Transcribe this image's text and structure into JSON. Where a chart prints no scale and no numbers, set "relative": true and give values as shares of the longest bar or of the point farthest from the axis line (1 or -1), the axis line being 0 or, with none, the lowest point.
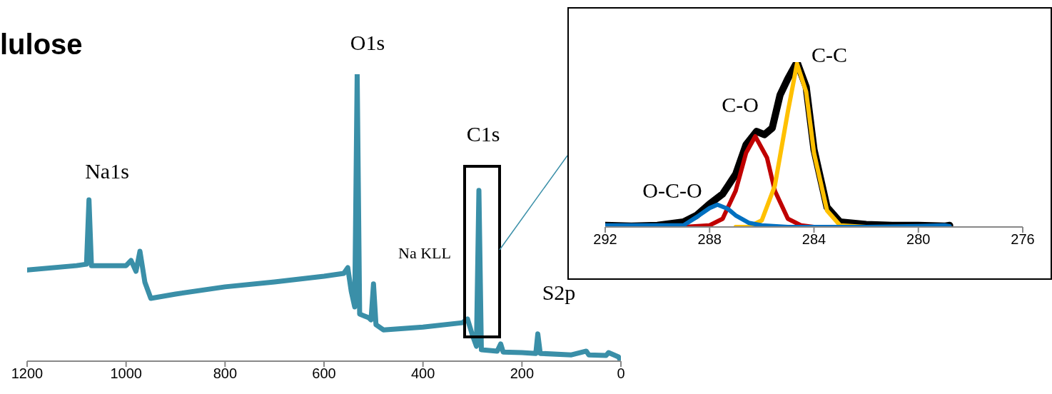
{
  "chart_data": [
    {
      "type": "line",
      "title": "lulose",
      "relative": true,
      "xlim": [
        1200,
        0
      ],
      "xticks": [
        1200,
        1000,
        800,
        600,
        400,
        200,
        0
      ],
      "marker": "none",
      "annotations": [
        "Na1s",
        "O1s",
        "C1s",
        "Na KLL",
        "S2p"
      ],
      "series": [
        {
          "color": "#3a8fa8",
          "x": [
            1200,
            1100,
            1080,
            1075,
            1070,
            1000,
            990,
            980,
            972,
            962,
            950,
            900,
            800,
            700,
            600,
            560,
            552,
            545,
            538,
            533,
            528,
            510,
            505,
            500,
            495,
            480,
            400,
            320,
            310,
            300,
            292,
            287,
            282,
            250,
            243,
            238,
            200,
            172,
            168,
            163,
            100,
            70,
            65,
            30,
            25,
            5,
            0
          ],
          "values": [
            0.318,
            0.333,
            0.338,
            0.562,
            0.333,
            0.333,
            0.351,
            0.313,
            0.383,
            0.275,
            0.219,
            0.234,
            0.259,
            0.276,
            0.296,
            0.306,
            0.326,
            0.244,
            0.189,
            1,
            0.164,
            0.152,
            0.144,
            0.269,
            0.127,
            0.109,
            0.119,
            0.134,
            0.147,
            0.09,
            0.052,
            0.595,
            0.04,
            0.035,
            0.06,
            0.032,
            0.03,
            0.027,
            0.095,
            0.027,
            0.022,
            0.035,
            0.022,
            0.02,
            0.03,
            0.015,
            0
          ]
        }
      ]
    },
    {
      "type": "line",
      "relative": true,
      "xlim": [
        292,
        276
      ],
      "xticks": [
        292,
        288,
        284,
        280,
        276
      ],
      "marker": "none",
      "annotations": [
        "C-C",
        "C-O",
        "O-C-O"
      ],
      "series": [
        {
          "color": "#000000",
          "x": [
            292,
            291,
            290,
            289,
            288.5,
            288,
            287.5,
            287,
            286.6,
            286.2,
            285.9,
            285.6,
            285.3,
            285,
            284.65,
            284.3,
            284,
            283.5,
            283,
            282,
            281,
            280,
            279,
            278.8
          ],
          "values": [
            0.01,
            0.005,
            0.01,
            0.03,
            0.07,
            0.14,
            0.2,
            0.32,
            0.5,
            0.58,
            0.56,
            0.6,
            0.8,
            0.9,
            1,
            0.85,
            0.47,
            0.12,
            0.03,
            0.015,
            0.01,
            0.01,
            0.005,
            0.01
          ]
        },
        {
          "color": "#c00000",
          "x": [
            292,
            289,
            288,
            287.5,
            287,
            286.6,
            286.25,
            285.8,
            285.5,
            285,
            284.5,
            284,
            283
          ],
          "values": [
            0,
            0,
            0.01,
            0.05,
            0.22,
            0.45,
            0.55,
            0.42,
            0.22,
            0.05,
            0.01,
            0,
            0
          ]
        },
        {
          "color": "#ffc000",
          "x": [
            287,
            286.5,
            286,
            285.5,
            285,
            284.65,
            284.3,
            284,
            283.5,
            283,
            282
          ],
          "values": [
            0,
            0,
            0.04,
            0.25,
            0.7,
            0.99,
            0.82,
            0.45,
            0.1,
            0.01,
            0
          ]
        },
        {
          "color": "#0070c0",
          "x": [
            292,
            290,
            289,
            288.5,
            288,
            287.7,
            287.3,
            287,
            286.5,
            286,
            285,
            282,
            280,
            279,
            278.8
          ],
          "values": [
            0.01,
            0.01,
            0.01,
            0.06,
            0.115,
            0.135,
            0.11,
            0.07,
            0.025,
            0.01,
            0,
            0,
            0.005,
            0.01,
            0.005
          ]
        }
      ]
    }
  ]
}
